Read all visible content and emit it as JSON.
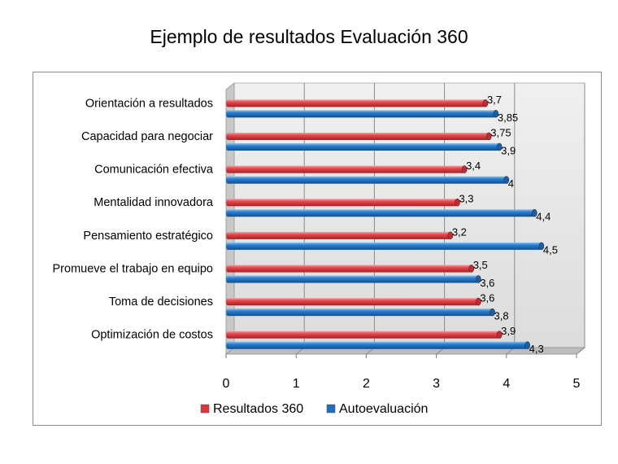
{
  "chart_data": {
    "type": "bar",
    "orientation": "horizontal",
    "title": "Ejemplo de resultados Evaluación 360",
    "categories": [
      "Orientación a resultados",
      "Capacidad para negociar",
      "Comunicación efectiva",
      "Mentalidad innovadora",
      "Pensamiento estratégico",
      "Promueve el trabajo en equipo",
      "Toma de decisiones",
      "Optimización de costos"
    ],
    "series": [
      {
        "name": "Resultados 360",
        "color": "#e0343c",
        "values": [
          3.7,
          3.75,
          3.4,
          3.3,
          3.2,
          3.5,
          3.6,
          3.9
        ],
        "labels": [
          "3,7",
          "3,75",
          "3,4",
          "3,3",
          "3,2",
          "3,5",
          "3,6",
          "3,9"
        ]
      },
      {
        "name": "Autoevaluación",
        "color": "#1f6fc1",
        "values": [
          3.85,
          3.9,
          4,
          4.4,
          4.5,
          3.6,
          3.8,
          4.3
        ],
        "labels": [
          "3,85",
          "3,9",
          "4",
          "4,4",
          "4,5",
          "3,6",
          "3,8",
          "4,3"
        ]
      }
    ],
    "xlim": [
      0,
      5
    ],
    "x_ticks": [
      "0",
      "1",
      "2",
      "3",
      "4",
      "5"
    ],
    "grid": true,
    "legend": "bottom"
  }
}
